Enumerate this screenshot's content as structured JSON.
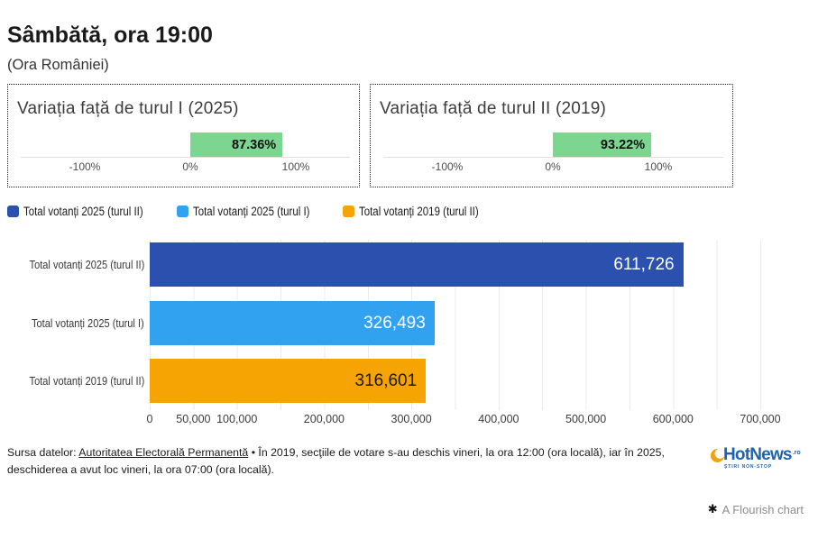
{
  "header": {
    "title": "Sâmbătă, ora 19:00",
    "subtitle": "(Ora României)"
  },
  "chart_data": [
    {
      "type": "bar",
      "orientation": "horizontal",
      "categories": [
        "Total votanți 2025 (turul II)",
        "Total votanți 2025 (turul I)",
        "Total votanți 2019 (turul II)"
      ],
      "values": [
        611726,
        326493,
        316601
      ],
      "value_labels": [
        "611,726",
        "326,493",
        "316,601"
      ],
      "bar_colors": [
        "#2b50ad",
        "#31a2f0",
        "#f6a404"
      ],
      "value_label_colors": [
        "#ffffff",
        "#ffffff",
        "#1a1a1a"
      ],
      "legend_position": "top",
      "legend": [
        {
          "label": "Total votanți 2025 (turul II)",
          "color": "#2b50ad"
        },
        {
          "label": "Total votanți 2025 (turul I)",
          "color": "#31a2f0"
        },
        {
          "label": "Total votanți 2019 (turul II)",
          "color": "#f6a404"
        }
      ],
      "x_axis": {
        "min": 0,
        "max": 700000,
        "grid": true,
        "gridline_step": 50000,
        "tick_values": [
          0,
          50000,
          100000,
          200000,
          300000,
          400000,
          500000,
          600000,
          700000
        ],
        "tick_labels": [
          "0",
          "50,000",
          "100,000",
          "200,000",
          "300,000",
          "400,000",
          "500,000",
          "600,000",
          "700,000"
        ]
      }
    },
    {
      "type": "bar",
      "orientation": "horizontal",
      "title": "Variația față de turul I (2025)",
      "values": [
        87.36
      ],
      "value_labels": [
        "87.36%"
      ],
      "bar_color": "#7dd68f",
      "x_axis": {
        "tick_values": [
          -100,
          0,
          100
        ],
        "tick_labels": [
          "-100%",
          "0%",
          "100%"
        ]
      }
    },
    {
      "type": "bar",
      "orientation": "horizontal",
      "title": "Variația față de turul II (2019)",
      "values": [
        93.22
      ],
      "value_labels": [
        "93.22%"
      ],
      "bar_color": "#7dd68f",
      "x_axis": {
        "tick_values": [
          -100,
          0,
          100
        ],
        "tick_labels": [
          "-100%",
          "0%",
          "100%"
        ]
      }
    }
  ],
  "footer": {
    "source_prefix": "Sursa datelor: ",
    "source_link": "Autoritatea Electorală Permanentă",
    "separator": " • ",
    "note": "În 2019, secţiile de votare s-au deschis vineri, la ora 12:00 (ora locală), iar în 2025, deschiderea a avut loc vineri, la ora 07:00 (ora locală)."
  },
  "branding": {
    "logo_text": "HotNews",
    "logo_tld": ".ro",
    "logo_tagline": "ȘTIRI NON-STOP"
  },
  "credit": {
    "icon": "flourish-asterisk-icon",
    "label": "A Flourish chart"
  }
}
